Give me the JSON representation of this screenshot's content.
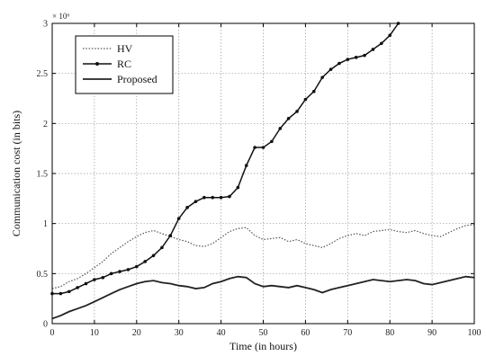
{
  "chart_data": {
    "type": "line",
    "xlabel": "Time (in hours)",
    "ylabel": "Communication cost (in bits)",
    "y_multiplier_label": "× 10⁶",
    "xlim": [
      0,
      100
    ],
    "ylim": [
      0,
      3
    ],
    "x_ticks": [
      "0",
      "10",
      "20",
      "30",
      "40",
      "50",
      "60",
      "70",
      "80",
      "90",
      "100"
    ],
    "y_ticks": [
      "0",
      "0.5",
      "1",
      "1.5",
      "2",
      "2.5",
      "3"
    ],
    "grid": true,
    "legend_position": "top-left",
    "series": [
      {
        "name": "HV",
        "style": "dotted",
        "color": "#555555",
        "x": [
          0,
          2,
          4,
          6,
          8,
          10,
          12,
          14,
          16,
          18,
          20,
          22,
          24,
          26,
          28,
          30,
          32,
          34,
          36,
          38,
          40,
          42,
          44,
          46,
          48,
          50,
          52,
          54,
          56,
          58,
          60,
          62,
          64,
          66,
          68,
          70,
          72,
          74,
          76,
          78,
          80,
          82,
          84,
          86,
          88,
          90,
          92,
          94,
          96,
          98,
          100
        ],
        "y": [
          0.35,
          0.37,
          0.42,
          0.45,
          0.5,
          0.56,
          0.62,
          0.7,
          0.76,
          0.82,
          0.87,
          0.91,
          0.93,
          0.9,
          0.87,
          0.84,
          0.82,
          0.78,
          0.77,
          0.8,
          0.86,
          0.92,
          0.95,
          0.96,
          0.88,
          0.84,
          0.85,
          0.86,
          0.82,
          0.84,
          0.8,
          0.78,
          0.76,
          0.8,
          0.85,
          0.88,
          0.9,
          0.88,
          0.92,
          0.93,
          0.94,
          0.92,
          0.91,
          0.93,
          0.9,
          0.88,
          0.87,
          0.91,
          0.95,
          0.98,
          0.99
        ]
      },
      {
        "name": "RC",
        "style": "line-markers",
        "color": "#111111",
        "x": [
          0,
          2,
          4,
          6,
          8,
          10,
          12,
          14,
          16,
          18,
          20,
          22,
          24,
          26,
          28,
          30,
          32,
          34,
          36,
          38,
          40,
          42,
          44,
          46,
          48,
          50,
          52,
          54,
          56,
          58,
          60,
          62,
          64,
          66,
          68,
          70,
          72,
          74,
          76,
          78,
          80,
          82
        ],
        "y": [
          0.3,
          0.3,
          0.32,
          0.36,
          0.4,
          0.44,
          0.46,
          0.5,
          0.52,
          0.54,
          0.57,
          0.62,
          0.68,
          0.76,
          0.88,
          1.05,
          1.16,
          1.22,
          1.26,
          1.26,
          1.26,
          1.27,
          1.36,
          1.58,
          1.76,
          1.76,
          1.82,
          1.95,
          2.05,
          2.12,
          2.24,
          2.32,
          2.46,
          2.54,
          2.6,
          2.64,
          2.66,
          2.68,
          2.74,
          2.8,
          2.88,
          3.0
        ]
      },
      {
        "name": "Proposed",
        "style": "solid",
        "color": "#222222",
        "x": [
          0,
          2,
          4,
          6,
          8,
          10,
          12,
          14,
          16,
          18,
          20,
          22,
          24,
          26,
          28,
          30,
          32,
          34,
          36,
          38,
          40,
          42,
          44,
          46,
          48,
          50,
          52,
          54,
          56,
          58,
          60,
          62,
          64,
          66,
          68,
          70,
          72,
          74,
          76,
          78,
          80,
          82,
          84,
          86,
          88,
          90,
          92,
          94,
          96,
          98,
          100
        ],
        "y": [
          0.05,
          0.08,
          0.12,
          0.15,
          0.18,
          0.22,
          0.26,
          0.3,
          0.34,
          0.37,
          0.4,
          0.42,
          0.43,
          0.41,
          0.4,
          0.38,
          0.37,
          0.35,
          0.36,
          0.4,
          0.42,
          0.45,
          0.47,
          0.46,
          0.4,
          0.37,
          0.38,
          0.37,
          0.36,
          0.38,
          0.36,
          0.34,
          0.31,
          0.34,
          0.36,
          0.38,
          0.4,
          0.42,
          0.44,
          0.43,
          0.42,
          0.43,
          0.44,
          0.43,
          0.4,
          0.39,
          0.41,
          0.43,
          0.45,
          0.47,
          0.46
        ]
      }
    ]
  }
}
